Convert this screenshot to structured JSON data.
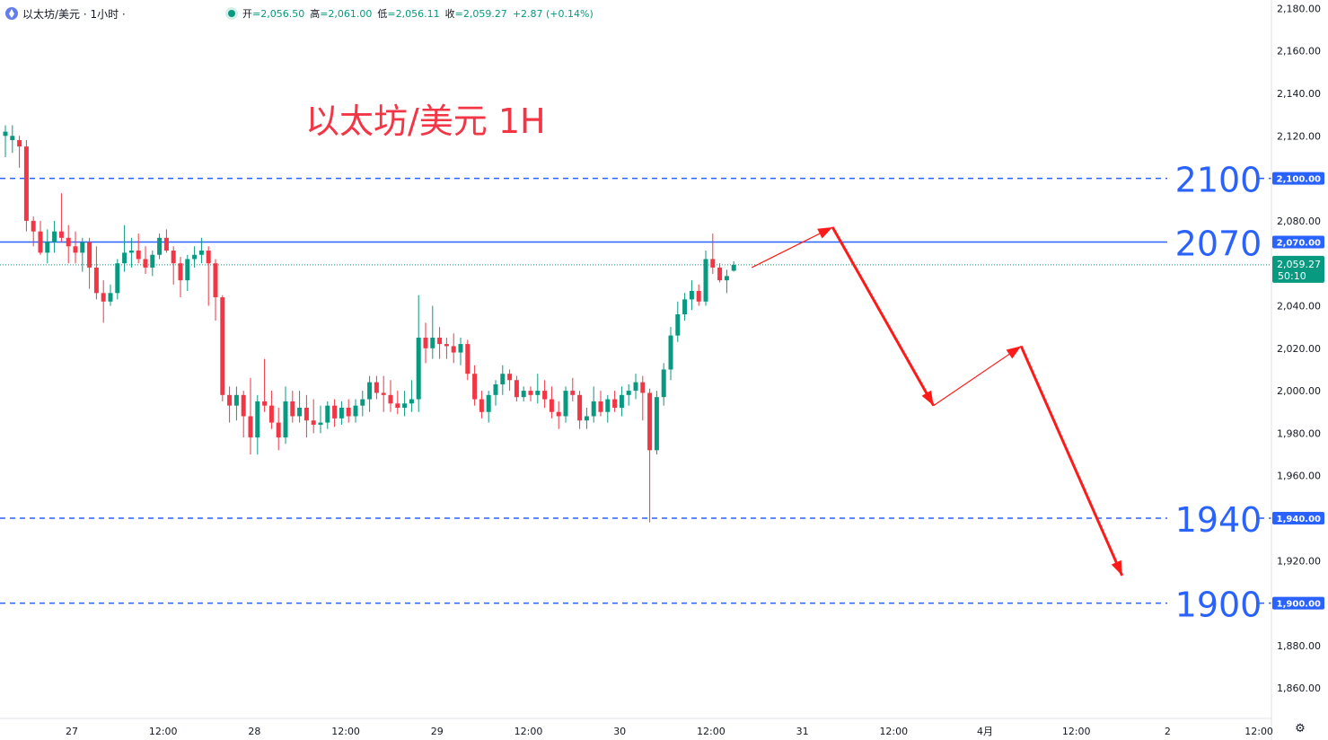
{
  "header": {
    "symbol": "以太坊/美元 · 1小时 ·",
    "open_label": "开",
    "open": "=2,056.50",
    "high_label": "高",
    "high": "=2,061.00",
    "low_label": "低",
    "low": "=2,056.11",
    "close_label": "收",
    "close": "=2,059.27",
    "change": "+2.87 (+0.14%)"
  },
  "title": "以太坊/美元 1H",
  "colors": {
    "up": "#089981",
    "down": "#f23645",
    "level": "#2962ff",
    "arrow": "#ff1a1a"
  },
  "chart_data": {
    "type": "candlestick",
    "title": "以太坊/美元 1H",
    "ylim": [
      1850,
      2185
    ],
    "y_ticks": [
      "2,180.00",
      "2,160.00",
      "2,140.00",
      "2,120.00",
      "2,100.00",
      "2,080.00",
      "2,060.00",
      "2,040.00",
      "2,020.00",
      "2,000.00",
      "1,980.00",
      "1,960.00",
      "1,940.00",
      "1,920.00",
      "1,900.00",
      "1,880.00",
      "1,860.00"
    ],
    "x_ticks": [
      "27",
      "12:00",
      "28",
      "12:00",
      "29",
      "12:00",
      "30",
      "12:00",
      "31",
      "12:00",
      "4月",
      "12:00",
      "2",
      "12:00"
    ],
    "last_price": {
      "value": "2,059.27",
      "countdown": "50:10"
    },
    "levels": [
      {
        "value": 2100,
        "label": "2100",
        "tag": "2,100.00",
        "style": "dashed"
      },
      {
        "value": 2070,
        "label": "2070",
        "tag": "2,070.00",
        "style": "solid"
      },
      {
        "value": 1940,
        "label": "1940",
        "tag": "1,940.00",
        "style": "dashed"
      },
      {
        "value": 1900,
        "label": "1900",
        "tag": "1,900.00",
        "style": "dashed"
      }
    ],
    "projection_path": [
      [
        0,
        2058
      ],
      [
        12,
        2077
      ],
      [
        27,
        1993
      ],
      [
        40,
        2021
      ],
      [
        55,
        1913
      ]
    ],
    "ohlc": [
      [
        2120,
        2125,
        2110,
        2122
      ],
      [
        2118,
        2125,
        2112,
        2120
      ],
      [
        2118,
        2120,
        2105,
        2115
      ],
      [
        2115,
        2118,
        2075,
        2080
      ],
      [
        2080,
        2082,
        2068,
        2075
      ],
      [
        2075,
        2080,
        2064,
        2065
      ],
      [
        2065,
        2076,
        2060,
        2070
      ],
      [
        2070,
        2080,
        2065,
        2075
      ],
      [
        2075,
        2093,
        2070,
        2072
      ],
      [
        2072,
        2078,
        2060,
        2068
      ],
      [
        2068,
        2075,
        2060,
        2065
      ],
      [
        2065,
        2072,
        2056,
        2070
      ],
      [
        2070,
        2072,
        2048,
        2058
      ],
      [
        2058,
        2068,
        2043,
        2046
      ],
      [
        2046,
        2052,
        2032,
        2042
      ],
      [
        2042,
        2050,
        2040,
        2046
      ],
      [
        2046,
        2062,
        2043,
        2060
      ],
      [
        2060,
        2078,
        2056,
        2065
      ],
      [
        2065,
        2072,
        2058,
        2066
      ],
      [
        2066,
        2074,
        2060,
        2062
      ],
      [
        2062,
        2068,
        2055,
        2058
      ],
      [
        2058,
        2066,
        2054,
        2064
      ],
      [
        2064,
        2074,
        2062,
        2072
      ],
      [
        2072,
        2076,
        2065,
        2066
      ],
      [
        2066,
        2068,
        2050,
        2060
      ],
      [
        2060,
        2063,
        2044,
        2052
      ],
      [
        2052,
        2064,
        2047,
        2062
      ],
      [
        2062,
        2068,
        2058,
        2064
      ],
      [
        2064,
        2072,
        2060,
        2066
      ],
      [
        2066,
        2068,
        2040,
        2060
      ],
      [
        2060,
        2062,
        2033,
        2044
      ],
      [
        2044,
        2045,
        1995,
        1998
      ],
      [
        1998,
        2002,
        1985,
        1993
      ],
      [
        1993,
        2002,
        1986,
        1998
      ],
      [
        1998,
        2000,
        1978,
        1988
      ],
      [
        1988,
        2006,
        1970,
        1978
      ],
      [
        1978,
        1998,
        1970,
        1995
      ],
      [
        1995,
        2015,
        1990,
        1993
      ],
      [
        1993,
        2000,
        1982,
        1985
      ],
      [
        1985,
        1992,
        1972,
        1978
      ],
      [
        1978,
        2002,
        1975,
        1995
      ],
      [
        1995,
        2000,
        1985,
        1988
      ],
      [
        1988,
        2000,
        1985,
        1992
      ],
      [
        1992,
        1998,
        1978,
        1986
      ],
      [
        1986,
        1996,
        1980,
        1984
      ],
      [
        1984,
        1993,
        1980,
        1985
      ],
      [
        1985,
        1995,
        1982,
        1993
      ],
      [
        1993,
        1996,
        1983,
        1987
      ],
      [
        1987,
        1995,
        1984,
        1992
      ],
      [
        1992,
        1996,
        1985,
        1988
      ],
      [
        1988,
        1996,
        1985,
        1993
      ],
      [
        1993,
        2000,
        1988,
        1996
      ],
      [
        1996,
        2007,
        1990,
        2004
      ],
      [
        2004,
        2007,
        1996,
        1999
      ],
      [
        1999,
        2007,
        1990,
        1998
      ],
      [
        1998,
        2005,
        1990,
        1994
      ],
      [
        1994,
        2000,
        1989,
        1992
      ],
      [
        1992,
        2000,
        1988,
        1994
      ],
      [
        1994,
        2005,
        1990,
        1996
      ],
      [
        1996,
        2045,
        1990,
        2025
      ],
      [
        2025,
        2032,
        2013,
        2020
      ],
      [
        2020,
        2040,
        2015,
        2025
      ],
      [
        2025,
        2030,
        2015,
        2022
      ],
      [
        2022,
        2025,
        2015,
        2021
      ],
      [
        2021,
        2027,
        2013,
        2018
      ],
      [
        2018,
        2025,
        2012,
        2022
      ],
      [
        2022,
        2024,
        2005,
        2008
      ],
      [
        2008,
        2012,
        1993,
        1996
      ],
      [
        1996,
        2000,
        1987,
        1990
      ],
      [
        1990,
        2000,
        1985,
        1998
      ],
      [
        1998,
        2005,
        1993,
        2003
      ],
      [
        2003,
        2012,
        1998,
        2008
      ],
      [
        2008,
        2010,
        2000,
        2005
      ],
      [
        2005,
        2007,
        1995,
        1997
      ],
      [
        1997,
        2002,
        1995,
        2000
      ],
      [
        2000,
        2002,
        1995,
        1998
      ],
      [
        1998,
        2008,
        1994,
        2000
      ],
      [
        2000,
        2005,
        1992,
        1996
      ],
      [
        1996,
        2002,
        1987,
        1990
      ],
      [
        1990,
        1995,
        1982,
        1988
      ],
      [
        1988,
        2002,
        1985,
        2000
      ],
      [
        2000,
        2006,
        1995,
        1998
      ],
      [
        1998,
        2000,
        1982,
        1986
      ],
      [
        1986,
        1992,
        1982,
        1988
      ],
      [
        1988,
        2002,
        1985,
        1995
      ],
      [
        1995,
        2000,
        1988,
        1990
      ],
      [
        1990,
        1998,
        1985,
        1996
      ],
      [
        1996,
        2000,
        1990,
        1992
      ],
      [
        1992,
        2002,
        1988,
        1998
      ],
      [
        1998,
        2003,
        1993,
        2000
      ],
      [
        2000,
        2008,
        1996,
        2004
      ],
      [
        2004,
        2007,
        1986,
        1999
      ],
      [
        1999,
        2001,
        1938,
        1972
      ],
      [
        1972,
        2000,
        1970,
        1997
      ],
      [
        1997,
        2013,
        1993,
        2010
      ],
      [
        2010,
        2030,
        2005,
        2026
      ],
      [
        2026,
        2042,
        2023,
        2036
      ],
      [
        2036,
        2046,
        2033,
        2043
      ],
      [
        2043,
        2052,
        2038,
        2047
      ],
      [
        2047,
        2050,
        2040,
        2042
      ],
      [
        2042,
        2066,
        2040,
        2062
      ],
      [
        2062,
        2074,
        2055,
        2058
      ],
      [
        2058,
        2060,
        2051,
        2052
      ],
      [
        2052,
        2057,
        2046,
        2054
      ],
      [
        2056.5,
        2061,
        2056.11,
        2059.27
      ]
    ]
  }
}
